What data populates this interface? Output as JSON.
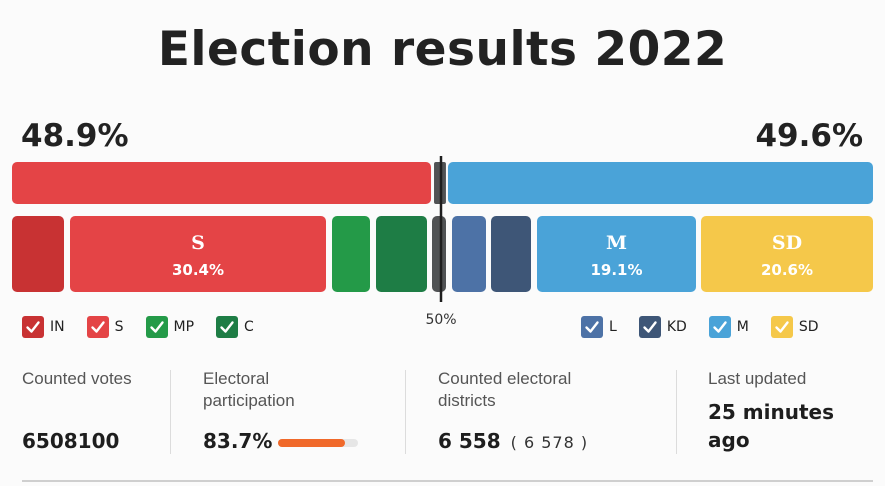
{
  "title": "Election results 2022",
  "left_total": "48.9%",
  "right_total": "49.6%",
  "colors": {
    "IN": "#c83233",
    "S": "#e44446",
    "MP": "#249a48",
    "C": "#1e7d45",
    "L": "#4d72a6",
    "KD": "#3e5677",
    "M": "#4aa3d8",
    "SD": "#f5c84a",
    "other": "#505254",
    "participation": "#f0692a"
  },
  "legend_left": [
    {
      "label": "IN",
      "color_key": "IN"
    },
    {
      "label": "S",
      "color_key": "S"
    },
    {
      "label": "MP",
      "color_key": "MP"
    },
    {
      "label": "C",
      "color_key": "C"
    }
  ],
  "legend_right": [
    {
      "label": "L",
      "color_key": "L"
    },
    {
      "label": "KD",
      "color_key": "KD"
    },
    {
      "label": "M",
      "color_key": "M"
    },
    {
      "label": "SD",
      "color_key": "SD"
    }
  ],
  "stats": {
    "counted_votes_label": "Counted votes",
    "counted_votes_value": "6508100",
    "participation_label": "Electoral participation",
    "participation_value": "83.7%",
    "participation_fraction": 0.837,
    "districts_label": "Counted electoral districts",
    "districts_value": "6 558",
    "districts_total": "( 6 578 )",
    "updated_label": "Last updated",
    "updated_value": "25 minutes ago"
  },
  "chart_data": {
    "type": "bar",
    "title": "Election results 2022",
    "midline_label": "50%",
    "blocs": [
      {
        "side": "left",
        "value": 48.9,
        "color_key": "S"
      },
      {
        "side": "right",
        "value": 49.6,
        "color_key": "M"
      }
    ],
    "parties": [
      {
        "id": "IN",
        "label": "",
        "value_label": "",
        "color_key": "IN"
      },
      {
        "id": "S",
        "label": "S",
        "value": 30.4,
        "value_label": "30.4%",
        "color_key": "S"
      },
      {
        "id": "MP",
        "label": "",
        "value_label": "",
        "color_key": "MP"
      },
      {
        "id": "C",
        "label": "",
        "value_label": "",
        "color_key": "C"
      },
      {
        "id": "other",
        "label": "",
        "value_label": "",
        "color_key": "other"
      },
      {
        "id": "L",
        "label": "",
        "value_label": "",
        "color_key": "L"
      },
      {
        "id": "KD",
        "label": "",
        "value_label": "",
        "color_key": "KD"
      },
      {
        "id": "M",
        "label": "M",
        "value": 19.1,
        "value_label": "19.1%",
        "color_key": "M"
      },
      {
        "id": "SD",
        "label": "SD",
        "value": 20.6,
        "value_label": "20.6%",
        "color_key": "SD"
      }
    ]
  }
}
